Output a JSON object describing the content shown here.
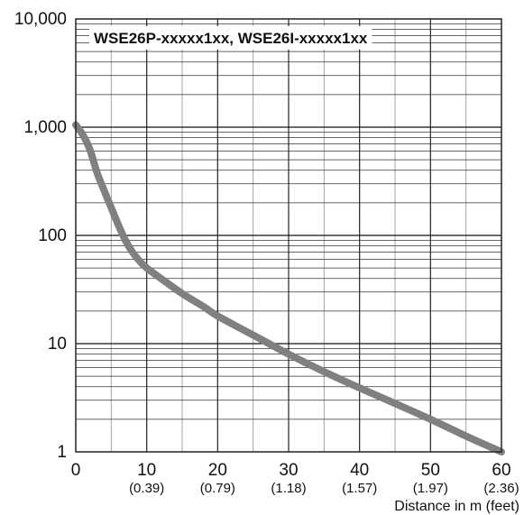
{
  "chart_data": {
    "type": "line",
    "title": "WSE26P-xxxxx1xx, WSE26I-xxxxx1xx",
    "xlabel": "Distance in m (feet)",
    "ylabel": "",
    "xlim": [
      0,
      60
    ],
    "ylim": [
      1,
      10000
    ],
    "yscale": "log",
    "grid": true,
    "x_ticks": [
      {
        "value": 0,
        "label": "0",
        "sub": ""
      },
      {
        "value": 10,
        "label": "10",
        "sub": "(0.39)"
      },
      {
        "value": 20,
        "label": "20",
        "sub": "(0.79)"
      },
      {
        "value": 30,
        "label": "30",
        "sub": "(1.18)"
      },
      {
        "value": 40,
        "label": "40",
        "sub": "(1.57)"
      },
      {
        "value": 50,
        "label": "50",
        "sub": "(1.97)"
      },
      {
        "value": 60,
        "label": "60",
        "sub": "(2.36)"
      }
    ],
    "y_ticks": [
      {
        "value": 1,
        "label": "1"
      },
      {
        "value": 10,
        "label": "10"
      },
      {
        "value": 100,
        "label": "100"
      },
      {
        "value": 1000,
        "label": "1,000"
      },
      {
        "value": 10000,
        "label": "10,000"
      }
    ],
    "series": [
      {
        "color": "#808080",
        "x": [
          0,
          1,
          2,
          3,
          4,
          5,
          6,
          7,
          8,
          9,
          10,
          12,
          15,
          18,
          20,
          25,
          30,
          35,
          40,
          45,
          50,
          55,
          60
        ],
        "y": [
          1050,
          850,
          620,
          380,
          260,
          180,
          125,
          90,
          70,
          58,
          50,
          40,
          29,
          22,
          18,
          12,
          8,
          5.5,
          3.9,
          2.8,
          2.0,
          1.4,
          1.0
        ]
      }
    ]
  }
}
